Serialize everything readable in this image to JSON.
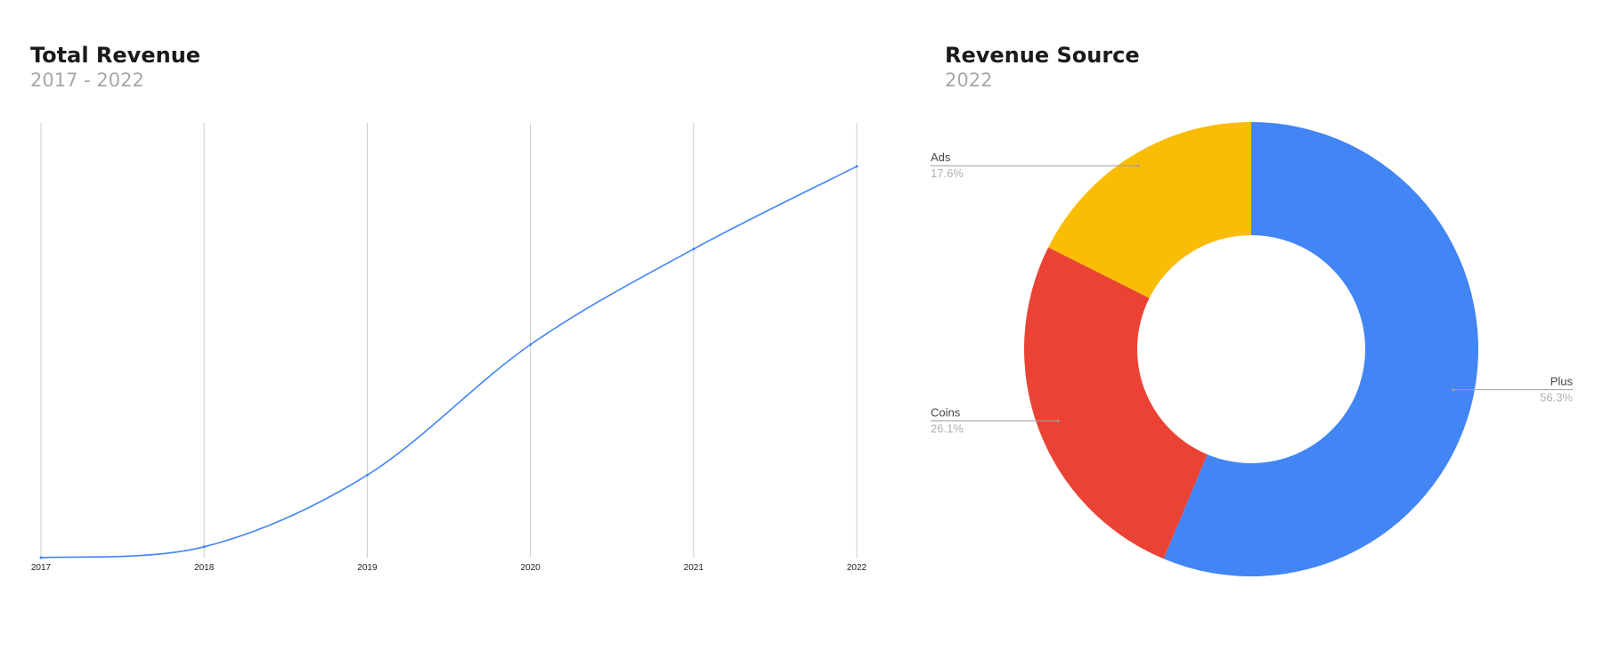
{
  "line_chart": {
    "title": "Total Revenue",
    "subtitle": "2017 - 2022"
  },
  "pie_chart": {
    "title": "Revenue Source",
    "subtitle": "2022"
  },
  "colors": {
    "line": "#4285F4",
    "grid": "#cccccc",
    "plus": "#4285F4",
    "coins": "#EA4335",
    "ads": "#FBBC04"
  },
  "chart_data": [
    {
      "type": "line",
      "title": "Total Revenue",
      "subtitle": "2017 - 2022",
      "categories": [
        "2017",
        "2018",
        "2019",
        "2020",
        "2021",
        "2022"
      ],
      "series": [
        {
          "values": [
            0,
            2.5,
            19,
            49,
            71,
            90
          ]
        }
      ],
      "ylim": [
        0,
        100
      ],
      "grid": "vertical",
      "legend": "none"
    },
    {
      "type": "pie",
      "donut": true,
      "title": "Revenue Source",
      "subtitle": "2022",
      "labels": [
        "Plus",
        "Coins",
        "Ads"
      ],
      "values": [
        56.3,
        26.1,
        17.6
      ],
      "value_labels": [
        "56.3%",
        "26.1%",
        "17.6%"
      ],
      "colors": [
        "#4285F4",
        "#EA4335",
        "#FBBC04"
      ],
      "start_angle": "top",
      "direction": "clockwise"
    }
  ]
}
